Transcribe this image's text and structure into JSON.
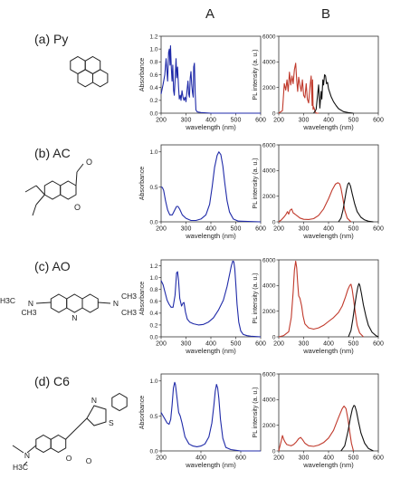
{
  "column_headers": [
    "A",
    "B"
  ],
  "molecules": [
    {
      "label": "(a) Py",
      "struct_text": []
    },
    {
      "label": "(b) AC",
      "struct_text": [
        "O",
        "O"
      ]
    },
    {
      "label": "(c) AO",
      "struct_text": [
        "H3C",
        "CH3",
        "N",
        "N",
        "N",
        "CH3",
        "CH3"
      ]
    },
    {
      "label": "(d) C6",
      "struct_text": [
        "N",
        "S",
        "H3C",
        "N",
        "O",
        "O"
      ]
    }
  ],
  "colors": {
    "absorbance": "#1f2aa8",
    "excitation": "#c0392b",
    "emission": "#111111"
  },
  "chart_data": [
    {
      "type": "line",
      "name": "Py absorbance",
      "xlabel": "wavelength (nm)",
      "ylabel": "Absorbance",
      "xlim": [
        200,
        600
      ],
      "ylim": [
        0,
        1.2
      ],
      "xticks": [
        200,
        300,
        400,
        500,
        600
      ],
      "yticks": [
        0.0,
        0.2,
        0.4,
        0.6,
        0.8,
        1.0,
        1.2
      ],
      "ytick_labels": [
        "0.0",
        "0.2",
        "0.4",
        "0.6",
        "0.8",
        "1.0",
        "1.2"
      ],
      "series": [
        {
          "color": "#1f2aa8",
          "x": [
            200,
            208,
            215,
            220,
            226,
            230,
            233,
            236,
            238,
            241,
            244,
            247,
            250,
            253,
            256,
            260,
            263,
            266,
            270,
            273,
            277,
            280,
            284,
            288,
            292,
            296,
            300,
            304,
            308,
            311,
            314,
            317,
            320,
            323,
            326,
            329,
            331,
            334,
            337,
            340,
            345,
            360,
            400,
            600
          ],
          "y": [
            0.3,
            0.45,
            0.6,
            0.85,
            0.5,
            0.95,
            1.0,
            0.75,
            1.05,
            0.7,
            0.5,
            0.75,
            0.35,
            0.28,
            0.5,
            0.85,
            0.55,
            0.72,
            0.4,
            0.22,
            0.28,
            0.2,
            0.35,
            0.25,
            0.2,
            0.25,
            0.18,
            0.35,
            0.5,
            0.3,
            0.25,
            0.55,
            0.65,
            0.45,
            0.32,
            0.25,
            0.72,
            0.78,
            0.3,
            0.05,
            0.02,
            0.01,
            0.0,
            0.0
          ]
        }
      ]
    },
    {
      "type": "line",
      "name": "Py PL",
      "xlabel": "wavelength (nm)",
      "ylabel": "PL intensity (a. u.)",
      "xlim": [
        200,
        600
      ],
      "ylim": [
        0,
        6000
      ],
      "xticks": [
        200,
        300,
        400,
        500,
        600
      ],
      "yticks": [
        0,
        2000,
        4000,
        6000
      ],
      "ytick_labels": [
        "0",
        "2000",
        "4000",
        "6000"
      ],
      "series": [
        {
          "color": "#c0392b",
          "x": [
            200,
            215,
            222,
            228,
            233,
            238,
            243,
            248,
            253,
            258,
            263,
            268,
            272,
            276,
            280,
            285,
            290,
            295,
            300,
            305,
            310,
            315,
            320,
            325,
            330,
            334,
            336,
            338,
            340,
            345,
            350,
            360
          ],
          "y": [
            0,
            200,
            2300,
            1800,
            2600,
            1700,
            3200,
            2200,
            2900,
            2300,
            3400,
            3900,
            2600,
            1700,
            2800,
            2200,
            1700,
            2600,
            1400,
            1200,
            2300,
            1100,
            800,
            2000,
            2900,
            600,
            2600,
            300,
            500,
            200,
            0,
            0
          ]
        },
        {
          "color": "#111111",
          "x": [
            340,
            350,
            360,
            365,
            370,
            373,
            377,
            380,
            384,
            388,
            392,
            396,
            400,
            405,
            410,
            420,
            430,
            440,
            460,
            480,
            500
          ],
          "y": [
            0,
            300,
            2200,
            400,
            1700,
            1100,
            2600,
            2200,
            3000,
            2900,
            2300,
            2400,
            1900,
            1600,
            1300,
            900,
            600,
            350,
            120,
            40,
            0
          ]
        }
      ]
    },
    {
      "type": "line",
      "name": "AC absorbance",
      "xlabel": "wavelength (nm)",
      "ylabel": "Absorbance",
      "xlim": [
        200,
        600
      ],
      "ylim": [
        0,
        1.1
      ],
      "xticks": [
        200,
        300,
        400,
        500,
        600
      ],
      "yticks": [
        0.0,
        0.5,
        1.0
      ],
      "ytick_labels": [
        "0.0",
        "0.5",
        "1.0"
      ],
      "series": [
        {
          "color": "#1f2aa8",
          "x": [
            200,
            205,
            210,
            218,
            226,
            235,
            245,
            255,
            262,
            268,
            275,
            285,
            300,
            320,
            340,
            360,
            380,
            395,
            405,
            415,
            425,
            432,
            440,
            448,
            456,
            465,
            475,
            490,
            510,
            600
          ],
          "y": [
            0.5,
            0.49,
            0.45,
            0.3,
            0.17,
            0.1,
            0.1,
            0.17,
            0.22,
            0.22,
            0.18,
            0.1,
            0.05,
            0.02,
            0.02,
            0.04,
            0.1,
            0.25,
            0.5,
            0.78,
            0.95,
            1.0,
            0.96,
            0.8,
            0.55,
            0.3,
            0.14,
            0.04,
            0.01,
            0.0
          ]
        }
      ]
    },
    {
      "type": "line",
      "name": "AC PL",
      "xlabel": "wavelength (nm)",
      "ylabel": "PL intensity (a. u.)",
      "xlim": [
        200,
        600
      ],
      "ylim": [
        0,
        6000
      ],
      "xticks": [
        200,
        300,
        400,
        500,
        600
      ],
      "yticks": [
        0,
        2000,
        4000,
        6000
      ],
      "ytick_labels": [
        "0",
        "2000",
        "4000",
        "6000"
      ],
      "series": [
        {
          "color": "#c0392b",
          "x": [
            200,
            210,
            220,
            228,
            235,
            240,
            245,
            252,
            258,
            265,
            275,
            285,
            300,
            320,
            340,
            360,
            380,
            400,
            415,
            428,
            438,
            445,
            450,
            458,
            465,
            475,
            490
          ],
          "y": [
            0,
            150,
            350,
            550,
            800,
            600,
            900,
            1000,
            700,
            600,
            450,
            300,
            200,
            180,
            250,
            500,
            1000,
            1800,
            2500,
            2950,
            3050,
            2950,
            2600,
            1800,
            900,
            300,
            0
          ]
        },
        {
          "color": "#111111",
          "x": [
            440,
            450,
            458,
            465,
            472,
            478,
            482,
            488,
            495,
            505,
            515,
            530,
            545,
            560,
            580
          ],
          "y": [
            0,
            300,
            900,
            1700,
            2500,
            2950,
            3050,
            2800,
            2200,
            1400,
            800,
            350,
            150,
            50,
            0
          ]
        }
      ]
    },
    {
      "type": "line",
      "name": "AO absorbance",
      "xlabel": "wavelength (nm)",
      "ylabel": "Absorbance",
      "xlim": [
        200,
        600
      ],
      "ylim": [
        0,
        1.3
      ],
      "xticks": [
        200,
        300,
        400,
        500,
        600
      ],
      "yticks": [
        0.0,
        0.2,
        0.4,
        0.6,
        0.8,
        1.0,
        1.2
      ],
      "ytick_labels": [
        "0.0",
        "0.2",
        "0.4",
        "0.6",
        "0.8",
        "1.0",
        "1.2"
      ],
      "series": [
        {
          "color": "#1f2aa8",
          "x": [
            200,
            208,
            216,
            224,
            232,
            240,
            248,
            256,
            262,
            266,
            270,
            275,
            282,
            288,
            292,
            298,
            305,
            315,
            330,
            350,
            370,
            390,
            410,
            430,
            450,
            465,
            475,
            482,
            488,
            492,
            496,
            500,
            505,
            512,
            520,
            530,
            545,
            560,
            600
          ],
          "y": [
            0.95,
            0.88,
            0.75,
            0.62,
            0.55,
            0.5,
            0.5,
            0.7,
            1.08,
            1.1,
            0.95,
            0.65,
            0.52,
            0.57,
            0.58,
            0.42,
            0.3,
            0.25,
            0.22,
            0.2,
            0.21,
            0.25,
            0.32,
            0.45,
            0.62,
            0.85,
            1.05,
            1.2,
            1.28,
            1.27,
            1.15,
            0.9,
            0.55,
            0.25,
            0.1,
            0.04,
            0.02,
            0.01,
            0.0
          ]
        }
      ]
    },
    {
      "type": "line",
      "name": "AO PL",
      "xlabel": "wavelength (nm)",
      "ylabel": "PL intensity (a. u.)",
      "xlim": [
        200,
        600
      ],
      "ylim": [
        0,
        6000
      ],
      "xticks": [
        200,
        300,
        400,
        500,
        600
      ],
      "yticks": [
        0,
        2000,
        4000,
        6000
      ],
      "ytick_labels": [
        "0",
        "2000",
        "4000",
        "6000"
      ],
      "series": [
        {
          "color": "#c0392b",
          "x": [
            200,
            220,
            240,
            250,
            258,
            263,
            268,
            272,
            276,
            280,
            285,
            292,
            298,
            305,
            320,
            340,
            360,
            380,
            400,
            420,
            440,
            455,
            468,
            478,
            485,
            490,
            495,
            500,
            508,
            515,
            525,
            540
          ],
          "y": [
            0,
            100,
            400,
            1500,
            3500,
            5200,
            5900,
            5400,
            4200,
            3200,
            3000,
            2400,
            1600,
            1000,
            700,
            600,
            700,
            900,
            1200,
            1500,
            1900,
            2400,
            3100,
            3700,
            4000,
            4100,
            3700,
            3000,
            1800,
            900,
            300,
            0
          ]
        },
        {
          "color": "#111111",
          "x": [
            480,
            490,
            498,
            505,
            512,
            518,
            522,
            526,
            532,
            540,
            550,
            560,
            575,
            590,
            600
          ],
          "y": [
            0,
            500,
            1400,
            2400,
            3300,
            3900,
            4150,
            4000,
            3400,
            2500,
            1600,
            900,
            350,
            100,
            0
          ]
        }
      ]
    },
    {
      "type": "line",
      "name": "C6 absorbance",
      "xlabel": "wavelength (nm)",
      "ylabel": "Absorbance",
      "xlim": [
        200,
        700
      ],
      "ylim": [
        0,
        1.1
      ],
      "xticks": [
        200,
        400,
        600
      ],
      "yticks": [
        0.0,
        0.5,
        1.0
      ],
      "ytick_labels": [
        "0.0",
        "0.5",
        "1.0"
      ],
      "series": [
        {
          "color": "#1f2aa8",
          "x": [
            200,
            210,
            220,
            230,
            240,
            248,
            255,
            262,
            268,
            272,
            278,
            288,
            296,
            305,
            320,
            340,
            360,
            380,
            400,
            420,
            440,
            455,
            465,
            472,
            478,
            484,
            490,
            498,
            510,
            525,
            550,
            600,
            700
          ],
          "y": [
            0.55,
            0.5,
            0.45,
            0.4,
            0.38,
            0.45,
            0.65,
            0.9,
            0.98,
            0.95,
            0.8,
            0.55,
            0.5,
            0.4,
            0.2,
            0.1,
            0.07,
            0.06,
            0.07,
            0.1,
            0.2,
            0.4,
            0.65,
            0.85,
            0.95,
            0.9,
            0.75,
            0.45,
            0.18,
            0.05,
            0.02,
            0.0,
            0.0
          ]
        }
      ]
    },
    {
      "type": "line",
      "name": "C6 PL",
      "xlabel": "wavelength (nm)",
      "ylabel": "PL intensity (a. u.)",
      "xlim": [
        200,
        600
      ],
      "ylim": [
        0,
        6000
      ],
      "xticks": [
        200,
        300,
        400,
        500,
        600
      ],
      "yticks": [
        0,
        2000,
        4000,
        6000
      ],
      "ytick_labels": [
        "0",
        "2000",
        "4000",
        "6000"
      ],
      "series": [
        {
          "color": "#c0392b",
          "x": [
            200,
            210,
            215,
            220,
            225,
            232,
            240,
            250,
            260,
            270,
            280,
            288,
            295,
            305,
            320,
            340,
            360,
            380,
            400,
            420,
            440,
            455,
            462,
            470,
            478,
            485,
            492,
            500
          ],
          "y": [
            0,
            800,
            1200,
            900,
            700,
            500,
            450,
            400,
            500,
            700,
            950,
            1050,
            900,
            600,
            400,
            350,
            450,
            650,
            1000,
            1600,
            2600,
            3300,
            3500,
            3300,
            2500,
            1500,
            600,
            0
          ]
        },
        {
          "color": "#111111",
          "x": [
            450,
            465,
            478,
            488,
            496,
            502,
            506,
            512,
            520,
            530,
            545,
            560,
            580
          ],
          "y": [
            0,
            400,
            1500,
            2600,
            3300,
            3550,
            3500,
            3100,
            2300,
            1400,
            600,
            200,
            0
          ]
        }
      ]
    }
  ]
}
